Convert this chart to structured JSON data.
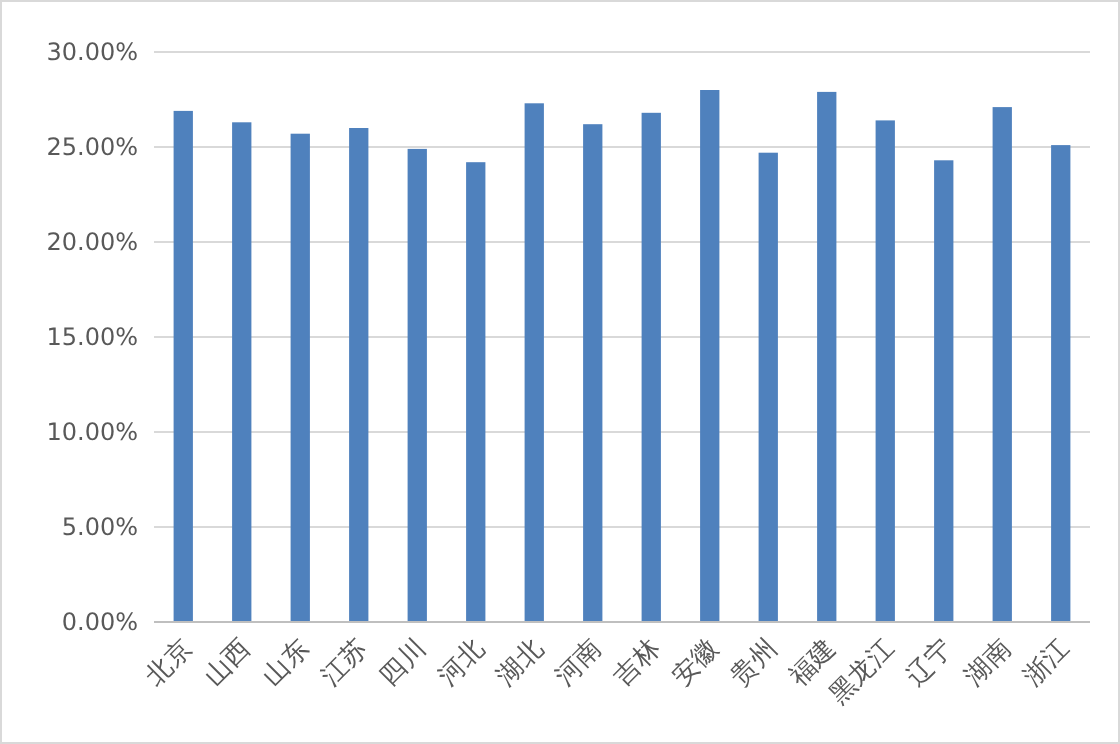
{
  "chart_data": {
    "type": "bar",
    "categories": [
      "北京",
      "山西",
      "山东",
      "江苏",
      "四川",
      "河北",
      "湖北",
      "河南",
      "吉林",
      "安徽",
      "贵州",
      "福建",
      "黑龙江",
      "辽宁",
      "湖南",
      "浙江"
    ],
    "values": [
      26.9,
      26.3,
      25.7,
      26.0,
      24.9,
      24.2,
      27.3,
      26.2,
      26.8,
      28.0,
      24.7,
      27.9,
      26.4,
      24.3,
      27.1,
      25.1
    ],
    "color": "#4f81bd",
    "ylim": [
      0,
      30
    ],
    "yticks": [
      {
        "value": 0,
        "label": "0.00%"
      },
      {
        "value": 5,
        "label": "5.00%"
      },
      {
        "value": 10,
        "label": "10.00%"
      },
      {
        "value": 15,
        "label": "15.00%"
      },
      {
        "value": 20,
        "label": "20.00%"
      },
      {
        "value": 25,
        "label": "25.00%"
      },
      {
        "value": 30,
        "label": "30.00%"
      }
    ],
    "grid": "y"
  }
}
